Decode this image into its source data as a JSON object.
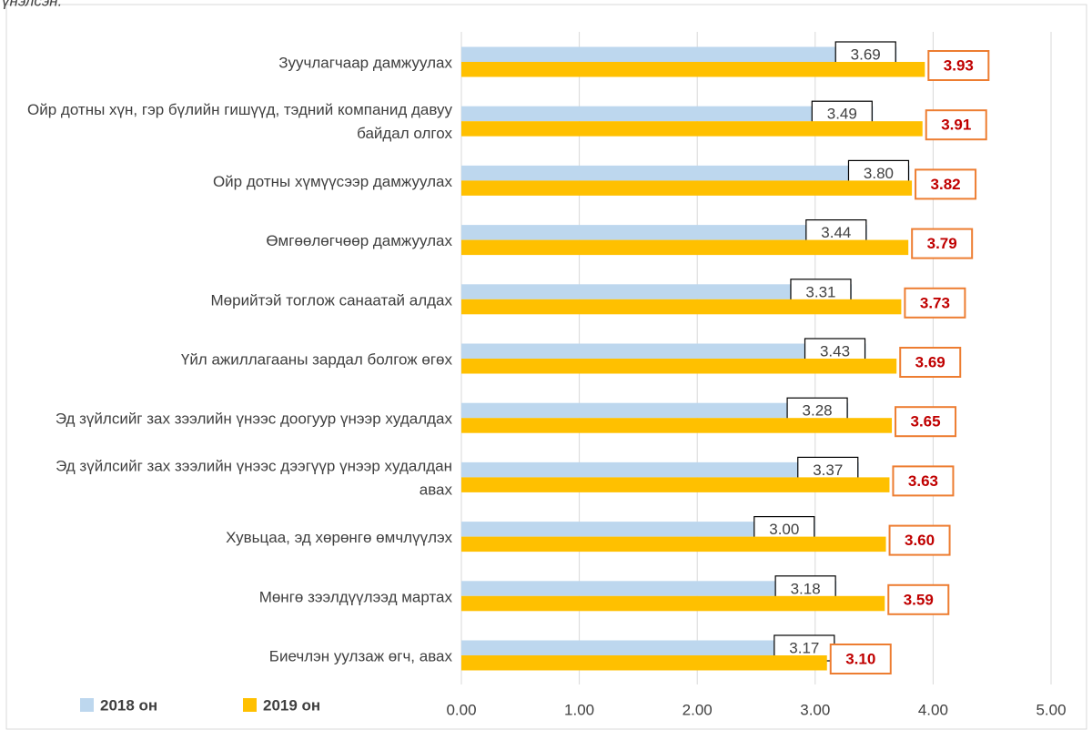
{
  "chart_data": {
    "type": "bar",
    "orientation": "horizontal",
    "caption": "үнэлсэн.",
    "categories": [
      "Зуучлагчаар дамжуулах",
      "Ойр дотны хүн, гэр бүлийн гишүүд, тэдний компанид давуу байдал олгох",
      "Ойр дотны хүмүүсээр дамжуулах",
      "Өмгөөлөгчөөр дамжуулах",
      "Мөрийтэй тоглож санаатай алдах",
      "Үйл ажиллагааны зардал болгож өгөх",
      "Эд зүйлсийг зах зээлийн үнээс доогуур үнээр худалдах",
      "Эд зүйлсийг зах зээлийн үнээс дээгүүр үнээр худалдан авах",
      "Хувьцаа, эд хөрөнгө өмчлүүлэх",
      "Мөнгө зээлдүүлээд мартах",
      "Биечлэн уулзаж өгч, авах"
    ],
    "series": [
      {
        "name": "2018 он",
        "color": "#bdd7ee",
        "label_color": "#404040",
        "label_border": "#000000",
        "values": [
          3.69,
          3.49,
          3.8,
          3.44,
          3.31,
          3.43,
          3.28,
          3.37,
          3.0,
          3.18,
          3.17
        ],
        "value_labels": [
          "3.69",
          "3.49",
          "3.80",
          "3.44",
          "3.31",
          "3.43",
          "3.28",
          "3.37",
          "3.00",
          "3.18",
          "3.17"
        ]
      },
      {
        "name": "2019 он",
        "color": "#ffc000",
        "label_color": "#c00000",
        "label_border": "#ed7d31",
        "values": [
          3.93,
          3.91,
          3.82,
          3.79,
          3.73,
          3.69,
          3.65,
          3.63,
          3.6,
          3.59,
          3.1
        ],
        "value_labels": [
          "3.93",
          "3.91",
          "3.82",
          "3.79",
          "3.73",
          "3.69",
          "3.65",
          "3.63",
          "3.60",
          "3.59",
          "3.10"
        ]
      }
    ],
    "xlim": [
      0,
      5
    ],
    "xticks": [
      {
        "value": 0,
        "label": "0.00"
      },
      {
        "value": 1,
        "label": "1.00"
      },
      {
        "value": 2,
        "label": "2.00"
      },
      {
        "value": 3,
        "label": "3.00"
      },
      {
        "value": 4,
        "label": "4.00"
      },
      {
        "value": 5,
        "label": "5.00"
      }
    ],
    "grid": true,
    "legend": "bottom-left"
  }
}
